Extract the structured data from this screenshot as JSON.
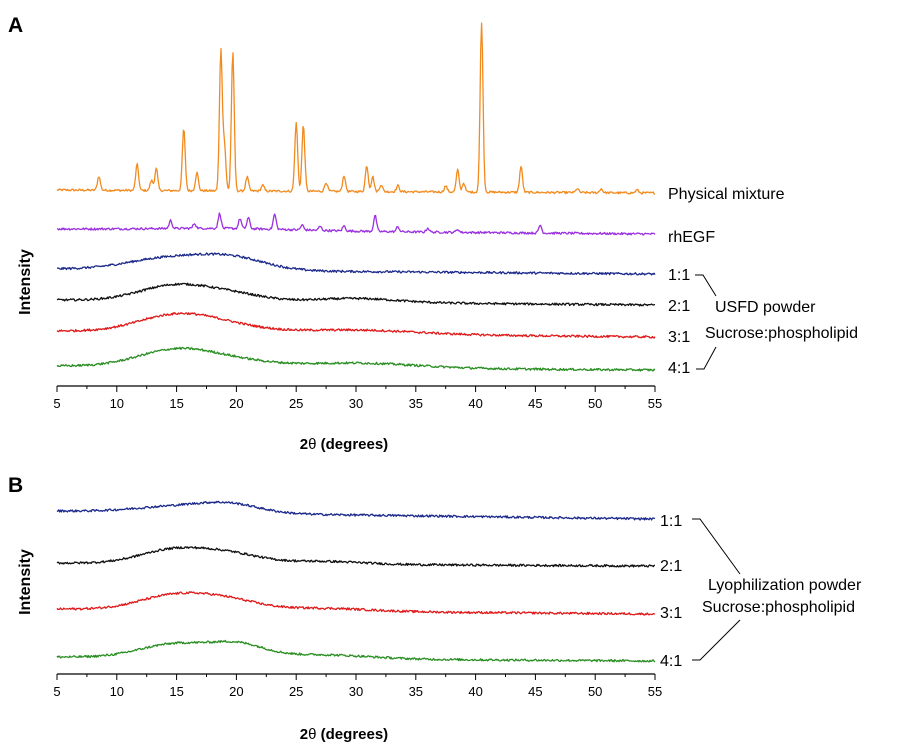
{
  "chart_data": [
    {
      "panel": "A",
      "type": "line",
      "xlabel_bold": "2",
      "xlabel_theta": "θ",
      "xlabel_rest": " (degrees)",
      "ylabel": "Intensity",
      "xlim": [
        5,
        55
      ],
      "xticks": [
        5,
        10,
        15,
        20,
        25,
        30,
        35,
        40,
        45,
        50,
        55
      ],
      "series": [
        {
          "name": "Physical mixture",
          "color": "#f28b1f",
          "baseline": 0,
          "peaks": [
            [
              8.5,
              14
            ],
            [
              11.7,
              26
            ],
            [
              12.9,
              10
            ],
            [
              13.3,
              22
            ],
            [
              15.6,
              62
            ],
            [
              16.7,
              18
            ],
            [
              18.7,
              140
            ],
            [
              19.0,
              45
            ],
            [
              19.7,
              138
            ],
            [
              20.9,
              14
            ],
            [
              22.2,
              6
            ],
            [
              25.0,
              68
            ],
            [
              25.6,
              66
            ],
            [
              27.5,
              9
            ],
            [
              29.0,
              16
            ],
            [
              30.9,
              26
            ],
            [
              31.4,
              15
            ],
            [
              32.1,
              7
            ],
            [
              33.5,
              6
            ],
            [
              37.5,
              6
            ],
            [
              38.5,
              22
            ],
            [
              39.0,
              9
            ],
            [
              40.5,
              170
            ],
            [
              43.8,
              26
            ],
            [
              48.5,
              4
            ],
            [
              50.5,
              4
            ],
            [
              53.5,
              3
            ]
          ],
          "humps": []
        },
        {
          "name": "rhEGF",
          "color": "#9b30e0",
          "baseline": 0,
          "peaks": [
            [
              14.5,
              8
            ],
            [
              16.5,
              5
            ],
            [
              18.6,
              15
            ],
            [
              20.3,
              10
            ],
            [
              21.0,
              11
            ],
            [
              23.2,
              15
            ],
            [
              25.5,
              5
            ],
            [
              27.0,
              4
            ],
            [
              29.0,
              5
            ],
            [
              31.6,
              16
            ],
            [
              33.5,
              5
            ],
            [
              36.0,
              4
            ],
            [
              38.5,
              3
            ],
            [
              45.4,
              8
            ]
          ],
          "humps": [
            [
              19,
              6,
              2
            ]
          ]
        },
        {
          "name": "1:1",
          "color": "#1c2a8c",
          "baseline": 0,
          "peaks": [],
          "humps": [
            [
              14.5,
              3.5,
              12
            ],
            [
              19.8,
              2.8,
              11
            ]
          ]
        },
        {
          "name": "2:1",
          "color": "#111111",
          "baseline": 0,
          "peaks": [],
          "humps": [
            [
              15,
              3.0,
              16
            ],
            [
              20,
              2.5,
              6
            ],
            [
              30,
              3.5,
              4
            ]
          ]
        },
        {
          "name": "3:1",
          "color": "#e01a1a",
          "baseline": 0,
          "peaks": [],
          "humps": [
            [
              15,
              3.2,
              17
            ],
            [
              19.5,
              3.0,
              5
            ],
            [
              30,
              5,
              4
            ]
          ]
        },
        {
          "name": "4:1",
          "color": "#2a8f22",
          "baseline": 0,
          "peaks": [],
          "humps": [
            [
              15,
              3.2,
              17
            ],
            [
              20,
              3.0,
              5
            ],
            [
              30,
              5,
              5
            ]
          ]
        }
      ],
      "group_label_1": "USFD powder",
      "group_label_2": "Sucrose:phospholipid"
    },
    {
      "panel": "B",
      "type": "line",
      "xlabel_bold": "2",
      "xlabel_theta": "θ",
      "xlabel_rest": " (degrees)",
      "ylabel": "Intensity",
      "xlim": [
        5,
        55
      ],
      "xticks": [
        5,
        10,
        15,
        20,
        25,
        30,
        35,
        40,
        45,
        50,
        55
      ],
      "series": [
        {
          "name": "1:1",
          "color": "#1c2a8c",
          "baseline": 0,
          "peaks": [],
          "humps": [
            [
              15,
              3.5,
              6
            ],
            [
              19.5,
              2.5,
              8
            ]
          ]
        },
        {
          "name": "2:1",
          "color": "#111111",
          "baseline": 0,
          "peaks": [],
          "humps": [
            [
              14.8,
              2.8,
              14
            ],
            [
              19.5,
              2.5,
              9
            ],
            [
              27,
              3.5,
              3
            ]
          ]
        },
        {
          "name": "3:1",
          "color": "#e01a1a",
          "baseline": 0,
          "peaks": [],
          "humps": [
            [
              15,
              3.0,
              15
            ],
            [
              19.5,
              2.5,
              8
            ],
            [
              27,
              4,
              3
            ]
          ]
        },
        {
          "name": "4:1",
          "color": "#2a8f22",
          "baseline": 0,
          "peaks": [],
          "humps": [
            [
              15,
              3.0,
              14
            ],
            [
              20.2,
              2.2,
              12
            ],
            [
              27,
              4,
              4
            ]
          ]
        }
      ],
      "group_label_1": "Lyophilization powder",
      "group_label_2": "Sucrose:phospholipid"
    }
  ]
}
